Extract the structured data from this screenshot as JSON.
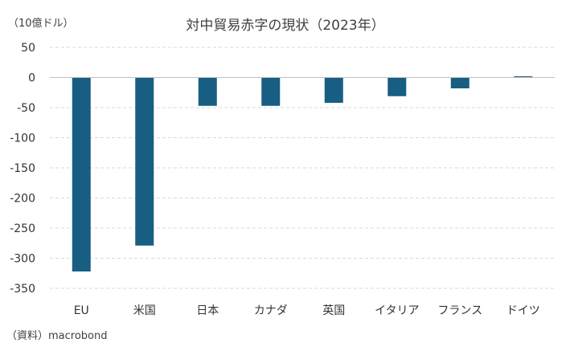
{
  "chart_data": {
    "type": "bar",
    "title": "対中貿易赤字の現状（2023年）",
    "unit_label": "（10億ドル）",
    "source": "（資料）macrobond",
    "categories": [
      "EU",
      "米国",
      "日本",
      "カナダ",
      "英国",
      "イタリア",
      "フランス",
      "ドイツ"
    ],
    "values": [
      -322,
      -279,
      -47,
      -47,
      -42,
      -31,
      -18,
      2
    ],
    "ylim": [
      -350,
      50
    ],
    "yticks": [
      50,
      0,
      -50,
      -100,
      -150,
      -200,
      -250,
      -300,
      -350
    ],
    "grid": true,
    "bar_color": "#175e82"
  }
}
